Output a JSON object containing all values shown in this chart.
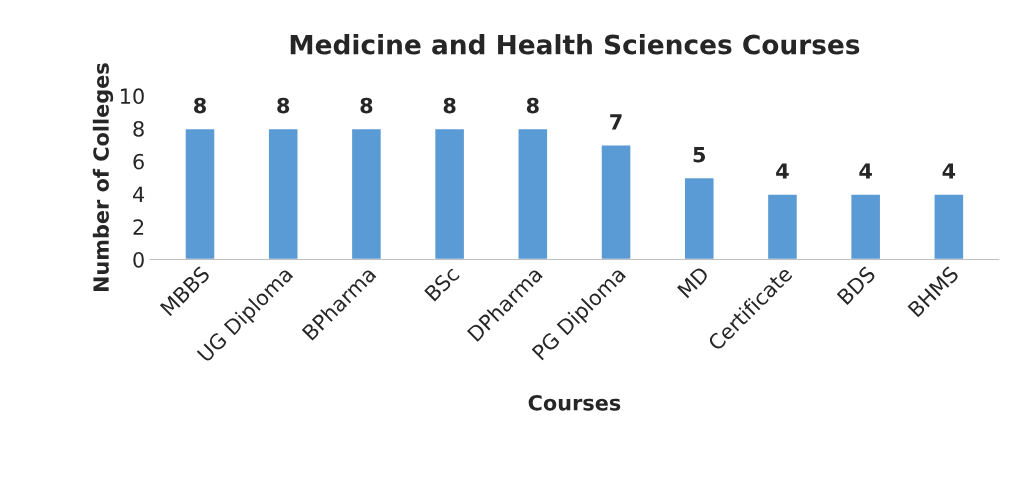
{
  "chart_data": {
    "type": "bar",
    "title": "Medicine and Health Sciences Courses",
    "xlabel": "Courses",
    "ylabel": "Number of Colleges",
    "categories": [
      "MBBS",
      "UG Diploma",
      "BPharma",
      "BSc",
      "DPharma",
      "PG Diploma",
      "MD",
      "Certificate",
      "BDS",
      "BHMS"
    ],
    "values": [
      8,
      8,
      8,
      8,
      8,
      7,
      5,
      4,
      4,
      4
    ],
    "color": "#5b9bd5",
    "ylim": [
      0,
      10
    ],
    "yticks": [
      0,
      2,
      4,
      6,
      8,
      10
    ],
    "grid": false,
    "data_labels": true
  }
}
